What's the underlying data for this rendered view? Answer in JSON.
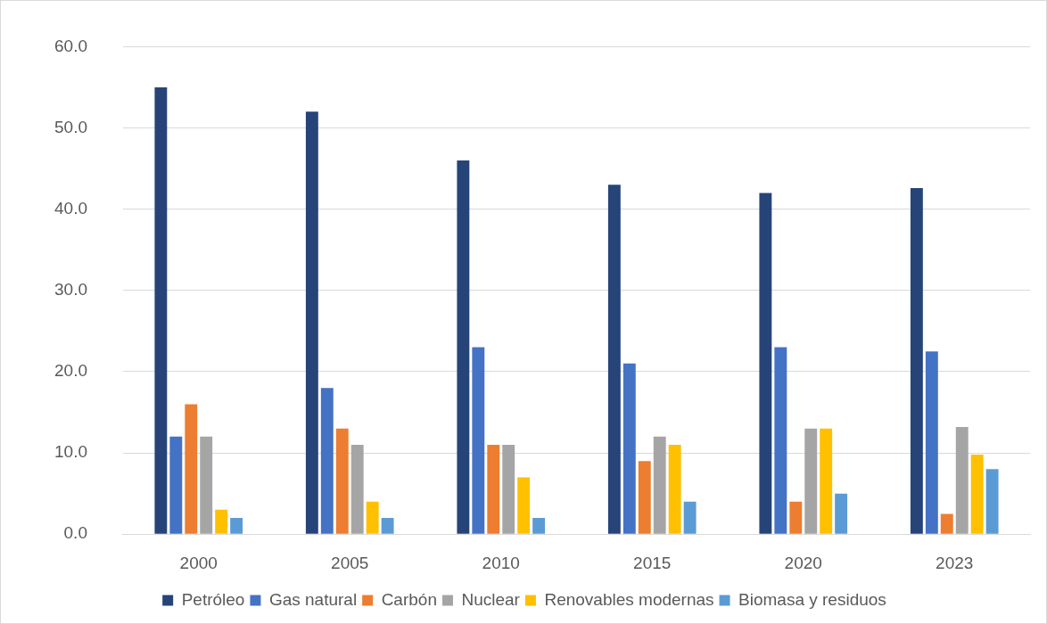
{
  "chart_data": {
    "type": "bar",
    "categories": [
      "2000",
      "2005",
      "2010",
      "2015",
      "2020",
      "2023"
    ],
    "series": [
      {
        "name": "Petróleo",
        "color": "#264478",
        "values": [
          55,
          52,
          46,
          43,
          42,
          42.6
        ]
      },
      {
        "name": "Gas natural",
        "color": "#4472c4",
        "values": [
          12,
          18,
          23,
          21,
          23,
          22.5
        ]
      },
      {
        "name": "Carbón",
        "color": "#ed7d31",
        "values": [
          16,
          13,
          11,
          9,
          4,
          2.5
        ]
      },
      {
        "name": "Nuclear",
        "color": "#a5a5a5",
        "values": [
          12,
          11,
          11,
          12,
          13,
          13.2
        ]
      },
      {
        "name": "Renovables modernas",
        "color": "#ffc000",
        "values": [
          3,
          4,
          7,
          11,
          13,
          9.8
        ]
      },
      {
        "name": "Biomasa y residuos",
        "color": "#5b9bd5",
        "values": [
          2,
          2,
          2,
          4,
          5,
          8
        ]
      }
    ],
    "ylim": [
      0,
      60
    ],
    "yticks": [
      {
        "value": 0,
        "label": "0.0"
      },
      {
        "value": 10,
        "label": "10.0"
      },
      {
        "value": 20,
        "label": "20.0"
      },
      {
        "value": 30,
        "label": "30.0"
      },
      {
        "value": 40,
        "label": "40.0"
      },
      {
        "value": 50,
        "label": "50.0"
      },
      {
        "value": 60,
        "label": "60.0"
      }
    ],
    "grid": "y",
    "legend": "bottom"
  }
}
